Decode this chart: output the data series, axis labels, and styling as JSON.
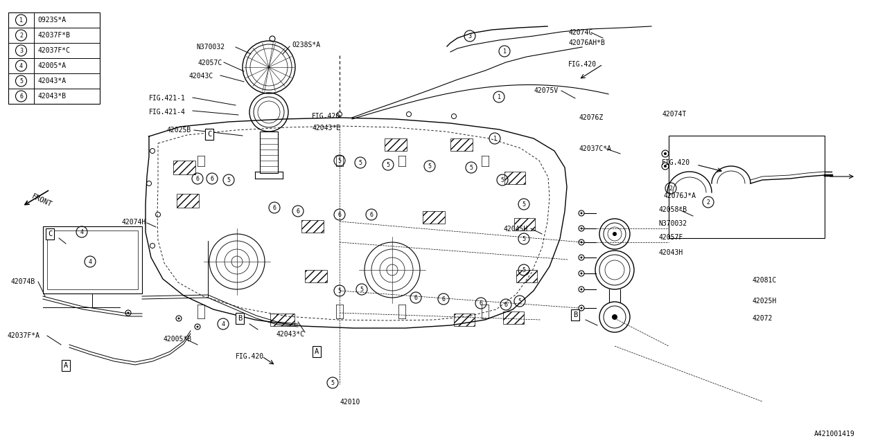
{
  "background_color": "#ffffff",
  "line_color": "#000000",
  "watermark": "A421001419",
  "legend_items": [
    {
      "num": "1",
      "code": "0923S*A"
    },
    {
      "num": "2",
      "code": "42037F*B"
    },
    {
      "num": "3",
      "code": "42037F*C"
    },
    {
      "num": "4",
      "code": "42005*A"
    },
    {
      "num": "5",
      "code": "42043*A"
    },
    {
      "num": "6",
      "code": "42043*B"
    }
  ]
}
